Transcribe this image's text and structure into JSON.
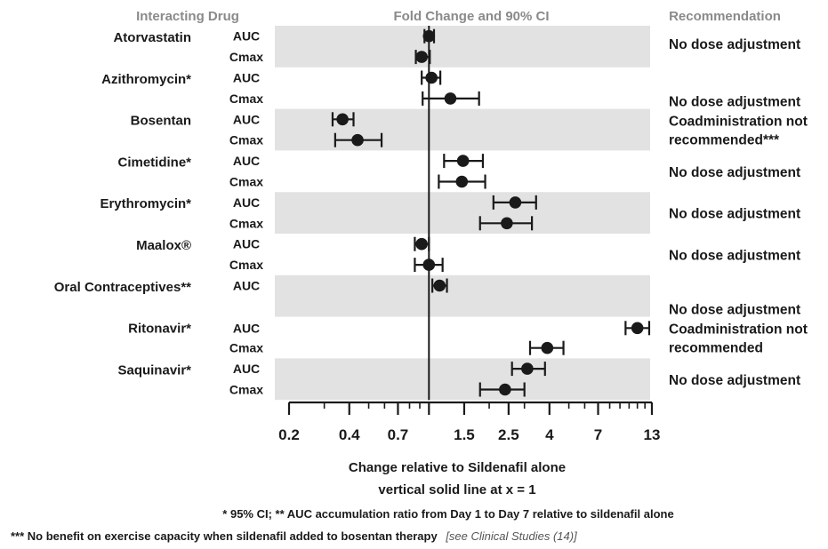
{
  "chart_data": {
    "type": "forest",
    "headers": {
      "drug": "Interacting Drug",
      "plot": "Fold Change and 90% CI",
      "recommendation": "Recommendation"
    },
    "x_scale": "log",
    "xlim": [
      0.2,
      13
    ],
    "x_ticks": [
      "0.2",
      "0.4",
      "0.7",
      "1",
      "1.5",
      "2.5",
      "4",
      "7",
      "13"
    ],
    "x_tick_values": [
      0.2,
      0.4,
      0.7,
      1,
      1.5,
      2.5,
      4,
      7,
      13
    ],
    "x_tick_labels": [
      "0.2",
      "0.4",
      "0.7",
      "",
      "1.5",
      "2.5",
      "4",
      "7",
      "13"
    ],
    "reference_line_x": 1,
    "xlabel_line1": "Change relative to Sildenafil alone",
    "xlabel_line2": "vertical solid line at x = 1",
    "groups": [
      {
        "drug": "Atorvastatin",
        "recommendation": [
          "No dose adjustment"
        ],
        "rec_align": "top",
        "rows": [
          {
            "metric": "AUC",
            "est": 1.0,
            "lo": 0.95,
            "hi": 1.06
          },
          {
            "metric": "Cmax",
            "est": 0.92,
            "lo": 0.86,
            "hi": 1.01
          }
        ]
      },
      {
        "drug": "Azithromycin*",
        "recommendation": [
          "No dose adjustment"
        ],
        "rec_align": "bottom",
        "rows": [
          {
            "metric": "AUC",
            "est": 1.03,
            "lo": 0.92,
            "hi": 1.14
          },
          {
            "metric": "Cmax",
            "est": 1.28,
            "lo": 0.93,
            "hi": 1.78
          }
        ]
      },
      {
        "drug": "Bosentan",
        "recommendation": [
          "Coadministration not",
          "recommended***"
        ],
        "rec_align": "center",
        "rows": [
          {
            "metric": "AUC",
            "est": 0.37,
            "lo": 0.33,
            "hi": 0.42
          },
          {
            "metric": "Cmax",
            "est": 0.44,
            "lo": 0.34,
            "hi": 0.58
          }
        ]
      },
      {
        "drug": "Cimetidine*",
        "recommendation": [
          "No dose adjustment"
        ],
        "rec_align": "center",
        "rows": [
          {
            "metric": "AUC",
            "est": 1.48,
            "lo": 1.19,
            "hi": 1.86
          },
          {
            "metric": "Cmax",
            "est": 1.46,
            "lo": 1.12,
            "hi": 1.91
          }
        ]
      },
      {
        "drug": "Erythromycin*",
        "recommendation": [
          "No dose adjustment"
        ],
        "rec_align": "center",
        "rows": [
          {
            "metric": "AUC",
            "est": 2.7,
            "lo": 2.1,
            "hi": 3.43
          },
          {
            "metric": "Cmax",
            "est": 2.45,
            "lo": 1.8,
            "hi": 3.27
          }
        ]
      },
      {
        "drug": "Maalox®",
        "recommendation": [
          "No dose adjustment"
        ],
        "rec_align": "center",
        "rows": [
          {
            "metric": "AUC",
            "est": 0.92,
            "lo": 0.85,
            "hi": 1.0
          },
          {
            "metric": "Cmax",
            "est": 1.0,
            "lo": 0.85,
            "hi": 1.17
          }
        ]
      },
      {
        "drug": "Oral Contraceptives**",
        "recommendation": [
          "No dose adjustment"
        ],
        "rec_align": "bottom",
        "rows": [
          {
            "metric": "AUC",
            "est": 1.13,
            "lo": 1.04,
            "hi": 1.23
          }
        ]
      },
      {
        "drug": "Ritonavir*",
        "recommendation": [
          "Coadministration not",
          "recommended"
        ],
        "rec_align": "center",
        "rows": [
          {
            "metric": "AUC",
            "est": 11.0,
            "lo": 9.6,
            "hi": 12.6
          },
          {
            "metric": "Cmax",
            "est": 3.9,
            "lo": 3.2,
            "hi": 4.7
          }
        ]
      },
      {
        "drug": "Saquinavir*",
        "recommendation": [
          "No dose adjustment"
        ],
        "rec_align": "center",
        "rows": [
          {
            "metric": "AUC",
            "est": 3.1,
            "lo": 2.6,
            "hi": 3.8
          },
          {
            "metric": "Cmax",
            "est": 2.4,
            "lo": 1.8,
            "hi": 3.0
          }
        ]
      }
    ],
    "footnote1": "* 95% CI;  ** AUC accumulation ratio from Day 1 to Day 7 relative to sildenafil alone",
    "footnote2": "*** No benefit on exercise capacity when sildenafil added to bosentan therapy",
    "footnote2_ref": "[see Clinical Studies (14)]"
  }
}
